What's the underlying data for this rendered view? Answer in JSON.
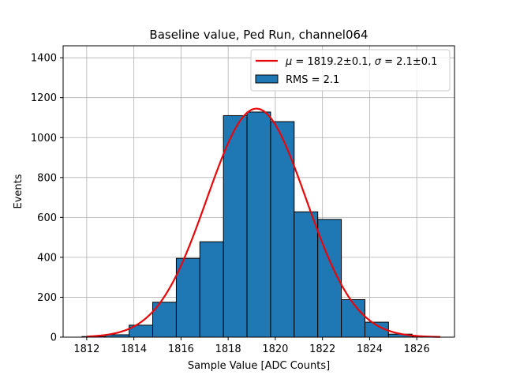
{
  "chart_data": {
    "type": "bar",
    "title": "Baseline value, Ped Run, channel064",
    "xlabel": "Sample Value [ADC Counts]",
    "ylabel": "Events",
    "xlim": [
      1811,
      1827.6
    ],
    "ylim": [
      0,
      1460
    ],
    "xticks": [
      1812,
      1814,
      1816,
      1818,
      1820,
      1822,
      1824,
      1826
    ],
    "yticks": [
      0,
      200,
      400,
      600,
      800,
      1000,
      1200,
      1400
    ],
    "grid": true,
    "histogram": {
      "name": "RMS = 2.1",
      "color": "#1f77b4",
      "edgecolor": "#000000",
      "bin_width": 1.0,
      "bin_left_edges": [
        1811.8,
        1812.8,
        1813.8,
        1814.8,
        1815.8,
        1816.8,
        1817.8,
        1818.8,
        1819.8,
        1820.8,
        1821.8,
        1822.8,
        1823.8,
        1824.8,
        1825.8
      ],
      "values": [
        3,
        12,
        60,
        175,
        395,
        478,
        1110,
        1128,
        1080,
        628,
        590,
        188,
        75,
        15,
        3
      ]
    },
    "fit": {
      "name": "$\\mu = $1819.2±0.1, $\\sigma = $2.1±0.1",
      "legend_mu_symbol": "μ",
      "legend_mu_text": " = 1819.2±0.1, ",
      "legend_sigma_symbol": "σ",
      "legend_sigma_text": " = 2.1±0.1",
      "color": "#e8070a",
      "mu": 1819.2,
      "sigma": 2.1,
      "amplitude": 1145,
      "x_range": [
        1812,
        1827
      ]
    },
    "legend_position": "upper right"
  }
}
